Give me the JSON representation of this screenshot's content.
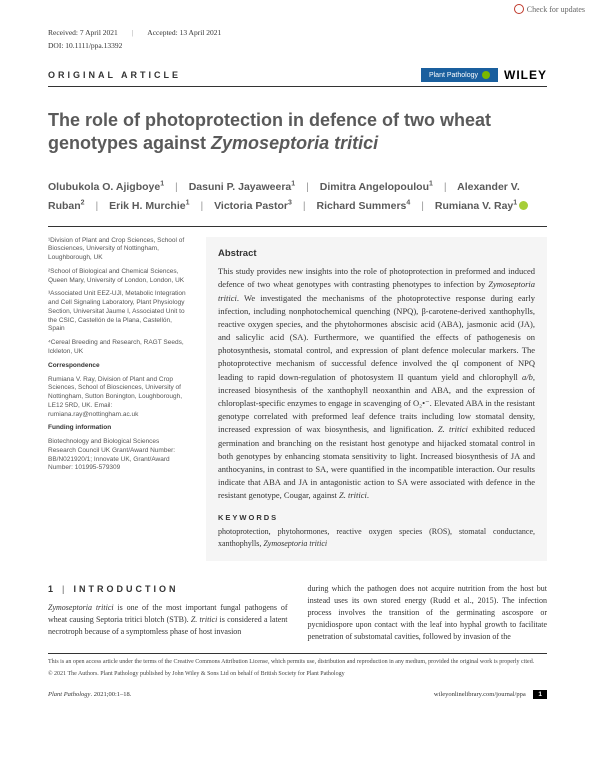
{
  "check_updates": "Check for updates",
  "received": "Received: 7 April 2021",
  "accepted": "Accepted: 13 April 2021",
  "doi": "DOI: 10.1111/ppa.13392",
  "article_type": "ORIGINAL ARTICLE",
  "journal_badge": "Plant Pathology",
  "publisher": "WILEY",
  "title_main": "The role of photoprotection in defence of two wheat genotypes against ",
  "title_ital": "Zymoseptoria tritici",
  "authors": [
    {
      "name": "Olubukola O. Ajigboye",
      "sup": "1"
    },
    {
      "name": "Dasuni P. Jayaweera",
      "sup": "1"
    },
    {
      "name": "Dimitra Angelopoulou",
      "sup": "1"
    },
    {
      "name": "Alexander V. Ruban",
      "sup": "2"
    },
    {
      "name": "Erik H. Murchie",
      "sup": "1"
    },
    {
      "name": "Victoria Pastor",
      "sup": "3"
    },
    {
      "name": "Richard Summers",
      "sup": "4"
    },
    {
      "name": "Rumiana V. Ray",
      "sup": "1"
    }
  ],
  "affiliations": {
    "a1": "¹Division of Plant and Crop Sciences, School of Biosciences, University of Nottingham, Loughborough, UK",
    "a2": "²School of Biological and Chemical Sciences, Queen Mary, University of London, London, UK",
    "a3": "³Associated Unit EEZ-UJI, Metabolic Integration and Cell Signaling Laboratory, Plant Physiology Section, Universitat Jaume I, Associated Unit to the CSIC, Castellón de la Plana, Castellón, Spain",
    "a4": "⁴Cereal Breeding and Research, RAGT Seeds, Ickleton, UK",
    "corr_hd": "Correspondence",
    "corr": "Rumiana V. Ray, Division of Plant and Crop Sciences, School of Biosciences, University of Nottingham, Sutton Bonington, Loughborough, LE12 5RD, UK. Email: rumiana.ray@nottingham.ac.uk",
    "fund_hd": "Funding information",
    "fund": "Biotechnology and Biological Sciences Research Council UK Grant/Award Number: BB/N021920/1; Innovate UK, Grant/Award Number: 101995-579309"
  },
  "abstract": {
    "hd": "Abstract",
    "p1": "This study provides new insights into the role of photoprotection in preformed and induced defence of two wheat genotypes with contrasting phenotypes to infection by ",
    "p1_ital": "Zymoseptoria tritici",
    "p2": ". We investigated the mechanisms of the photoprotective response during early infection, including nonphotochemical quenching (NPQ), β-carotene-derived xanthophylls, reactive oxygen species, and the phytohormones abscisic acid (ABA), jasmonic acid (JA), and salicylic acid (SA). Furthermore, we quantified the effects of pathogenesis on photosynthesis, stomatal control, and expression of plant defence molecular markers. The photoprotective mechanism of successful defence involved the qI component of NPQ leading to rapid down-regulation of photosystem II quantum yield and chlorophyll ",
    "p2_ital": "a/b",
    "p3": ", increased biosynthesis of the xanthophyll neoxanthin and ABA, and the expression of chloroplast-specific enzymes to engage in scavenging of O₂•⁻. Elevated ABA in the resistant genotype correlated with preformed leaf defence traits including low stomatal density, increased expression of wax biosynthesis, and lignification. ",
    "p3_ital": "Z. tritici",
    "p4": " exhibited reduced germination and branching on the resistant host genotype and hijacked stomatal control in both genotypes by enhancing stomata sensitivity to light. Increased biosynthesis of JA and anthocyanins, in contrast to SA, were quantified in the incompatible interaction. Our results indicate that ABA and JA in antagonistic action to SA were associated with defence in the resistant genotype, Cougar, against ",
    "p4_ital": "Z. tritici",
    "p5": ".",
    "kw_hd": "KEYWORDS",
    "kw": "photoprotection, phytohormones, reactive oxygen species (ROS), stomatal conductance, xanthophylls, ",
    "kw_ital": "Zymoseptoria tritici"
  },
  "intro": {
    "hd_num": "1",
    "hd_text": "INTRODUCTION",
    "left1_ital": "Zymoseptoria tritici",
    "left1": " is one of the most important fungal pathogens of wheat causing Septoria tritici blotch (STB). ",
    "left1b_ital": "Z. tritici",
    "left1b": " is considered a latent necrotroph because of a symptomless phase of host invasion",
    "right1": "during which the pathogen does not acquire nutrition from the host but instead uses its own stored energy (Rudd et al., 2015). The infection process involves the transition of the germinating ascospore or pycnidiospore upon contact with the leaf into hyphal growth to facilitate penetration of substomatal cavities, followed by invasion of the"
  },
  "license1": "This is an open access article under the terms of the Creative Commons Attribution License, which permits use, distribution and reproduction in any medium, provided the original work is properly cited.",
  "license2": "© 2021 The Authors. Plant Pathology published by John Wiley & Sons Ltd on behalf of British Society for Plant Pathology",
  "footer": {
    "left_ital": "Plant Pathology",
    "left": ". 2021;00:1–18.",
    "right": "wileyonlinelibrary.com/journal/ppa",
    "page": "1"
  },
  "colors": {
    "badge_bg": "#1a5f9e",
    "abstract_bg": "#f5f5f5",
    "heading_gray": "#5a5a5a",
    "orcid_green": "#a6ce39"
  }
}
